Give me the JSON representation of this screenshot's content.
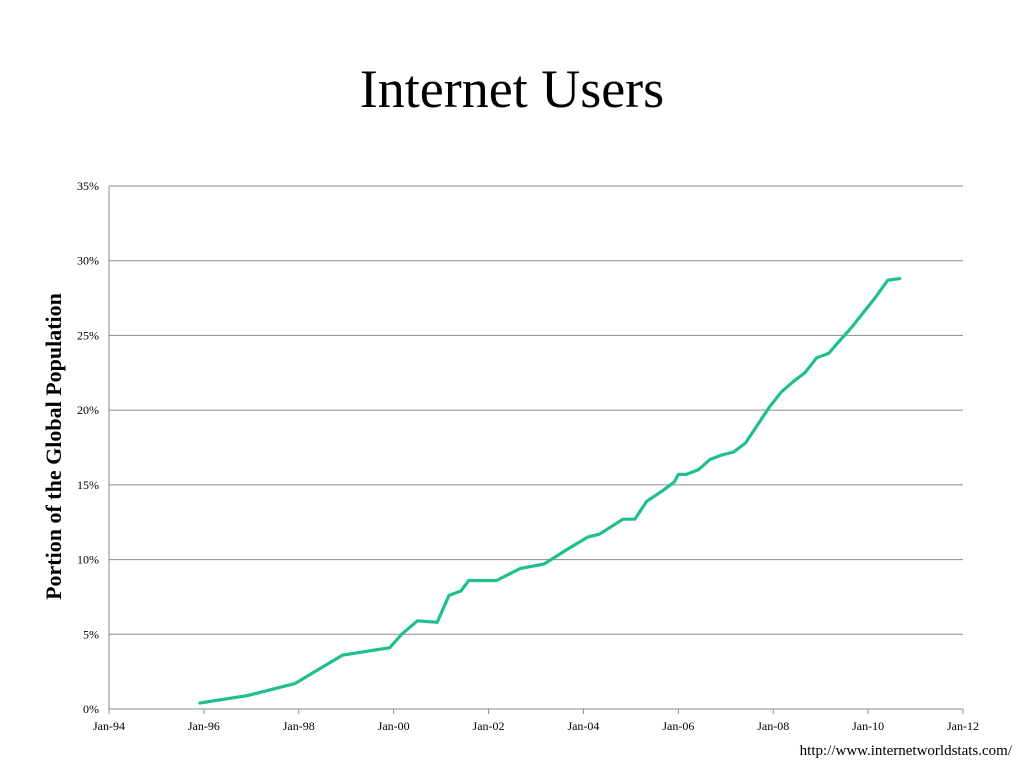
{
  "slide": {
    "title": "Internet Users",
    "source": "http://www.internetworldstats.com/"
  },
  "chart_data": {
    "type": "line",
    "title": "Internet Users",
    "xlabel": "",
    "ylabel": "Portion of the Global Population",
    "x_ticks": [
      "Jan-94",
      "Jan-96",
      "Jan-98",
      "Jan-00",
      "Jan-02",
      "Jan-04",
      "Jan-06",
      "Jan-08",
      "Jan-10",
      "Jan-12"
    ],
    "y_ticks": [
      "0%",
      "5%",
      "10%",
      "15%",
      "20%",
      "25%",
      "30%",
      "35%"
    ],
    "ylim": [
      0,
      35
    ],
    "xlim": [
      "1994-01",
      "2012-01"
    ],
    "grid": "horizontal",
    "legend": "none",
    "line_color": "#1fbf8f",
    "series": [
      {
        "points": [
          [
            "1995-12",
            0.4
          ],
          [
            "1996-12",
            0.9
          ],
          [
            "1997-12",
            1.7
          ],
          [
            "1998-12",
            3.6
          ],
          [
            "1999-12",
            4.1
          ],
          [
            "2000-03",
            5.0
          ],
          [
            "2000-07",
            5.9
          ],
          [
            "2000-12",
            5.8
          ],
          [
            "2001-03",
            7.6
          ],
          [
            "2001-06",
            7.9
          ],
          [
            "2001-08",
            8.6
          ],
          [
            "2002-03",
            8.6
          ],
          [
            "2002-09",
            9.4
          ],
          [
            "2003-03",
            9.7
          ],
          [
            "2003-09",
            10.7
          ],
          [
            "2004-02",
            11.5
          ],
          [
            "2004-05",
            11.7
          ],
          [
            "2004-11",
            12.7
          ],
          [
            "2005-02",
            12.7
          ],
          [
            "2005-05",
            13.9
          ],
          [
            "2005-09",
            14.6
          ],
          [
            "2005-12",
            15.2
          ],
          [
            "2006-01",
            15.7
          ],
          [
            "2006-03",
            15.7
          ],
          [
            "2006-06",
            16.0
          ],
          [
            "2006-09",
            16.7
          ],
          [
            "2006-12",
            17.0
          ],
          [
            "2007-03",
            17.2
          ],
          [
            "2007-06",
            17.8
          ],
          [
            "2007-09",
            19.0
          ],
          [
            "2007-12",
            20.2
          ],
          [
            "2008-03",
            21.2
          ],
          [
            "2008-06",
            21.9
          ],
          [
            "2008-09",
            22.5
          ],
          [
            "2008-12",
            23.5
          ],
          [
            "2009-03",
            23.8
          ],
          [
            "2009-06",
            24.7
          ],
          [
            "2009-09",
            25.6
          ],
          [
            "2009-12",
            26.6
          ],
          [
            "2010-03",
            27.6
          ],
          [
            "2010-06",
            28.7
          ],
          [
            "2010-09",
            28.8
          ]
        ]
      }
    ]
  }
}
